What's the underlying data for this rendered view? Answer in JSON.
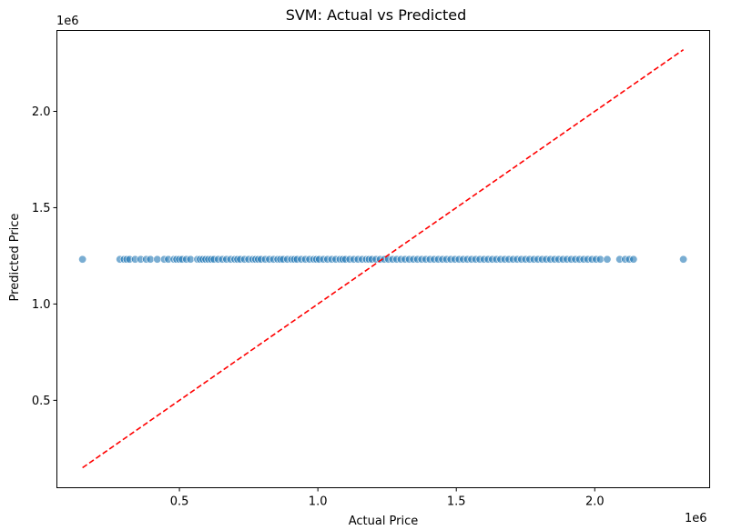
{
  "chart_data": {
    "type": "scatter",
    "title": "SVM: Actual vs Predicted",
    "xlabel": "Actual Price",
    "ylabel": "Predicted Price",
    "x_offset_label": "1e6",
    "y_offset_label": "1e6",
    "xlim": [
      0.0575,
      2.415
    ],
    "ylim": [
      0.0463,
      2.42
    ],
    "x_ticks": [
      0.5,
      1.0,
      1.5,
      2.0
    ],
    "x_tick_labels": [
      "0.5",
      "1.0",
      "1.5",
      "2.0"
    ],
    "y_ticks": [
      0.5,
      1.0,
      1.5,
      2.0
    ],
    "y_tick_labels": [
      "0.5",
      "1.0",
      "1.5",
      "2.0"
    ],
    "grid": false,
    "series": [
      {
        "marker_color": "#1f77b4",
        "predicted_constant": 1.232,
        "x": [
          0.15,
          0.285,
          0.3,
          0.31,
          0.32,
          0.34,
          0.36,
          0.38,
          0.395,
          0.42,
          0.445,
          0.46,
          0.48,
          0.49,
          0.5,
          0.51,
          0.525,
          0.54,
          0.565,
          0.575,
          0.585,
          0.595,
          0.605,
          0.615,
          0.625,
          0.64,
          0.655,
          0.67,
          0.685,
          0.7,
          0.71,
          0.72,
          0.735,
          0.75,
          0.765,
          0.775,
          0.785,
          0.795,
          0.81,
          0.825,
          0.84,
          0.855,
          0.865,
          0.875,
          0.89,
          0.905,
          0.915,
          0.925,
          0.94,
          0.955,
          0.97,
          0.985,
          0.995,
          1.005,
          1.02,
          1.035,
          1.05,
          1.065,
          1.08,
          1.09,
          1.1,
          1.115,
          1.13,
          1.145,
          1.16,
          1.175,
          1.185,
          1.195,
          1.21,
          1.225,
          1.24,
          1.255,
          1.27,
          1.285,
          1.3,
          1.315,
          1.33,
          1.345,
          1.36,
          1.375,
          1.39,
          1.405,
          1.42,
          1.435,
          1.45,
          1.465,
          1.48,
          1.495,
          1.51,
          1.525,
          1.54,
          1.555,
          1.57,
          1.585,
          1.6,
          1.615,
          1.63,
          1.645,
          1.66,
          1.675,
          1.69,
          1.705,
          1.72,
          1.735,
          1.75,
          1.765,
          1.78,
          1.795,
          1.81,
          1.825,
          1.84,
          1.855,
          1.87,
          1.885,
          1.9,
          1.915,
          1.93,
          1.945,
          1.96,
          1.975,
          1.99,
          2.005,
          2.02,
          2.045,
          2.09,
          2.11,
          2.125,
          2.14,
          2.32
        ],
        "y_value": 1.232
      },
      {
        "line_color": "#ff0000",
        "line_style": "dashed",
        "x": [
          0.15,
          2.32
        ],
        "y": [
          0.15,
          2.32
        ]
      }
    ]
  }
}
